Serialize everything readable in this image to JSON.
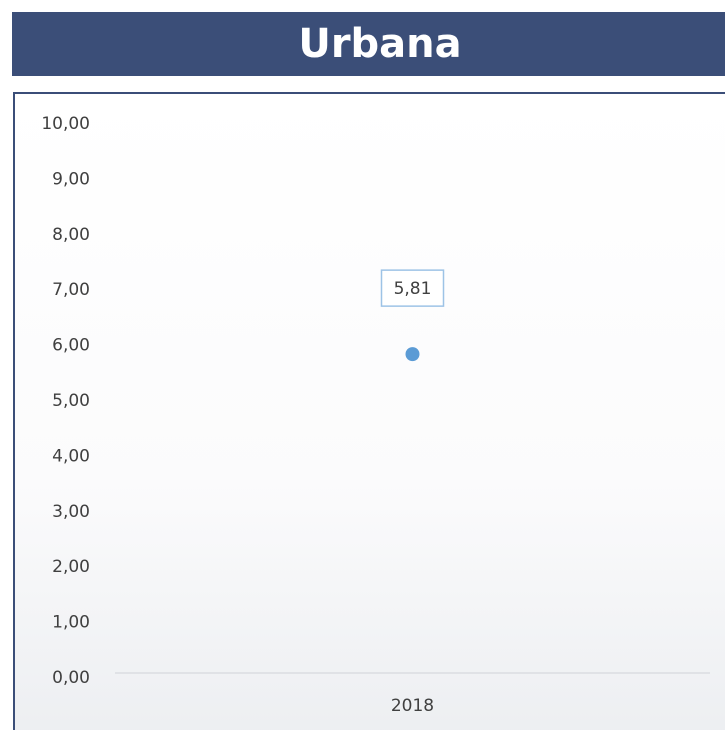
{
  "chart_data": {
    "type": "line",
    "title": "Urbana",
    "categories": [
      "2018"
    ],
    "values": [
      5.81
    ],
    "value_labels": [
      "5,81"
    ],
    "color": "#5b9bd5",
    "ylim": [
      0,
      10
    ],
    "yticks": [
      {
        "value": 0,
        "label": "0,00"
      },
      {
        "value": 1,
        "label": "1,00"
      },
      {
        "value": 2,
        "label": "2,00"
      },
      {
        "value": 3,
        "label": "3,00"
      },
      {
        "value": 4,
        "label": "4,00"
      },
      {
        "value": 5,
        "label": "5,00"
      },
      {
        "value": 6,
        "label": "6,00"
      },
      {
        "value": 7,
        "label": "7,00"
      },
      {
        "value": 8,
        "label": "8,00"
      },
      {
        "value": 9,
        "label": "9,00"
      },
      {
        "value": 10,
        "label": "10,00"
      }
    ],
    "grid": false
  }
}
